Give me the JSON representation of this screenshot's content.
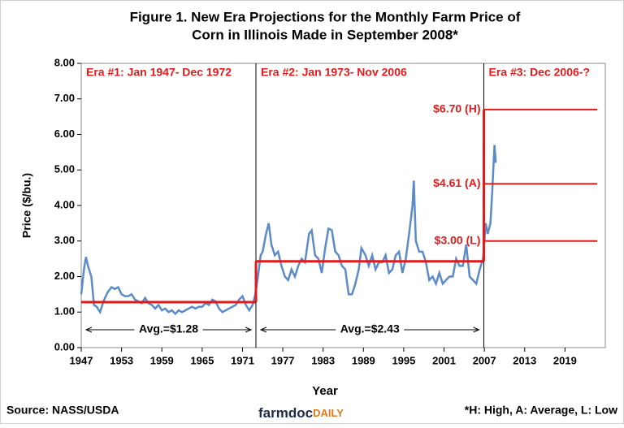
{
  "chart_data": {
    "type": "line",
    "title": "Figure 1. New Era Projections for the Monthly Farm Price of",
    "subtitle": "Corn in Illinois Made in September 2008*",
    "x_label": "Year",
    "y_label": "Price ($/bu.)",
    "xlim": [
      1947,
      2025
    ],
    "xticks": [
      1947,
      1953,
      1959,
      1965,
      1971,
      1977,
      1983,
      1989,
      1995,
      2001,
      2007,
      2013,
      2019
    ],
    "ylim": [
      0,
      8
    ],
    "yticks": [
      {
        "value": 0,
        "label": "0.00"
      },
      {
        "value": 1,
        "label": "1.00"
      },
      {
        "value": 2,
        "label": "2.00"
      },
      {
        "value": 3,
        "label": "3.00"
      },
      {
        "value": 4,
        "label": "4.00"
      },
      {
        "value": 5,
        "label": "5.00"
      },
      {
        "value": 6,
        "label": "6.00"
      },
      {
        "value": 7,
        "label": "7.00"
      },
      {
        "value": 8,
        "label": "8.00"
      }
    ],
    "series": [
      {
        "color": "#5b8bc9",
        "x": [
          1947.0,
          1947.4,
          1947.7,
          1948.0,
          1948.5,
          1948.9,
          1949.3,
          1949.8,
          1950.3,
          1950.9,
          1951.5,
          1952.0,
          1952.5,
          1953.0,
          1953.5,
          1954.0,
          1954.5,
          1955.0,
          1955.5,
          1956.0,
          1956.5,
          1957.0,
          1957.5,
          1958.0,
          1958.5,
          1959.0,
          1959.5,
          1960.0,
          1960.5,
          1961.0,
          1961.5,
          1962.0,
          1962.5,
          1963.0,
          1963.5,
          1964.0,
          1964.5,
          1965.0,
          1965.5,
          1966.0,
          1966.5,
          1967.0,
          1967.5,
          1968.0,
          1968.5,
          1969.0,
          1969.5,
          1970.0,
          1970.5,
          1971.0,
          1971.5,
          1972.0,
          1972.5,
          1972.9,
          1973.3,
          1973.7,
          1974.0,
          1974.5,
          1974.9,
          1975.3,
          1975.8,
          1976.3,
          1976.8,
          1977.3,
          1977.8,
          1978.3,
          1978.8,
          1979.3,
          1979.8,
          1980.3,
          1980.9,
          1981.3,
          1981.8,
          1982.3,
          1982.8,
          1983.3,
          1983.8,
          1984.3,
          1984.8,
          1985.3,
          1985.8,
          1986.3,
          1986.8,
          1987.3,
          1987.8,
          1988.3,
          1988.7,
          1989.3,
          1989.8,
          1990.3,
          1990.8,
          1991.3,
          1991.8,
          1992.3,
          1992.8,
          1993.3,
          1993.8,
          1994.3,
          1994.8,
          1995.3,
          1995.8,
          1996.3,
          1996.5,
          1996.8,
          1997.3,
          1997.8,
          1998.3,
          1998.8,
          1999.3,
          1999.8,
          2000.3,
          2000.8,
          2001.3,
          2001.8,
          2002.3,
          2002.8,
          2003.3,
          2003.8,
          2004.3,
          2004.8,
          2005.3,
          2005.8,
          2006.3,
          2006.8,
          2007.2,
          2007.5,
          2007.9,
          2008.2,
          2008.5,
          2008.7
        ],
        "values": [
          1.5,
          2.2,
          2.55,
          2.3,
          2.0,
          1.2,
          1.15,
          1.0,
          1.3,
          1.55,
          1.7,
          1.65,
          1.7,
          1.5,
          1.45,
          1.45,
          1.5,
          1.35,
          1.3,
          1.25,
          1.4,
          1.25,
          1.2,
          1.1,
          1.2,
          1.05,
          1.1,
          1.0,
          1.05,
          0.95,
          1.05,
          1.0,
          1.05,
          1.1,
          1.15,
          1.1,
          1.15,
          1.15,
          1.25,
          1.2,
          1.35,
          1.3,
          1.1,
          1.0,
          1.05,
          1.1,
          1.15,
          1.2,
          1.35,
          1.45,
          1.2,
          1.05,
          1.2,
          1.5,
          2.0,
          2.6,
          2.7,
          3.2,
          3.5,
          2.9,
          2.6,
          2.7,
          2.3,
          2.0,
          1.9,
          2.2,
          2.0,
          2.3,
          2.5,
          2.4,
          3.2,
          3.3,
          2.6,
          2.5,
          2.1,
          2.8,
          3.35,
          3.3,
          2.7,
          2.6,
          2.3,
          2.2,
          1.5,
          1.5,
          1.8,
          2.2,
          2.8,
          2.6,
          2.3,
          2.6,
          2.2,
          2.4,
          2.4,
          2.6,
          2.1,
          2.2,
          2.6,
          2.7,
          2.1,
          2.5,
          3.2,
          4.0,
          4.7,
          3.0,
          2.7,
          2.7,
          2.4,
          1.9,
          2.0,
          1.8,
          2.1,
          1.8,
          1.9,
          2.0,
          2.0,
          2.5,
          2.3,
          2.3,
          2.9,
          2.0,
          1.9,
          1.8,
          2.2,
          2.5,
          3.5,
          3.2,
          3.5,
          4.5,
          5.7,
          5.2
        ]
      }
    ],
    "step_color": "#e31a1c",
    "eras": [
      {
        "name": "Era #1: Jan 1947- Dec 1972",
        "start": 1947,
        "end": 1973,
        "average": 1.28,
        "average_label": "Avg.=$1.28"
      },
      {
        "name": "Era #2: Jan 1973- Nov 2006",
        "start": 1973,
        "end": 2006.92,
        "average": 2.43,
        "average_label": "Avg.=$2.43"
      },
      {
        "name": "Era #3: Dec 2006-?",
        "start": 2006.92
      }
    ],
    "projections": [
      {
        "value": 6.7,
        "label": "$6.70 (H)"
      },
      {
        "value": 4.61,
        "label": "$4.61 (A)"
      },
      {
        "value": 3.0,
        "label": "$3.00 (L)"
      }
    ],
    "source": "Source: NASS/USDA",
    "logo": [
      "farmdoc",
      "DAILY"
    ],
    "footnote": "*H: High, A: Average, L: Low"
  }
}
